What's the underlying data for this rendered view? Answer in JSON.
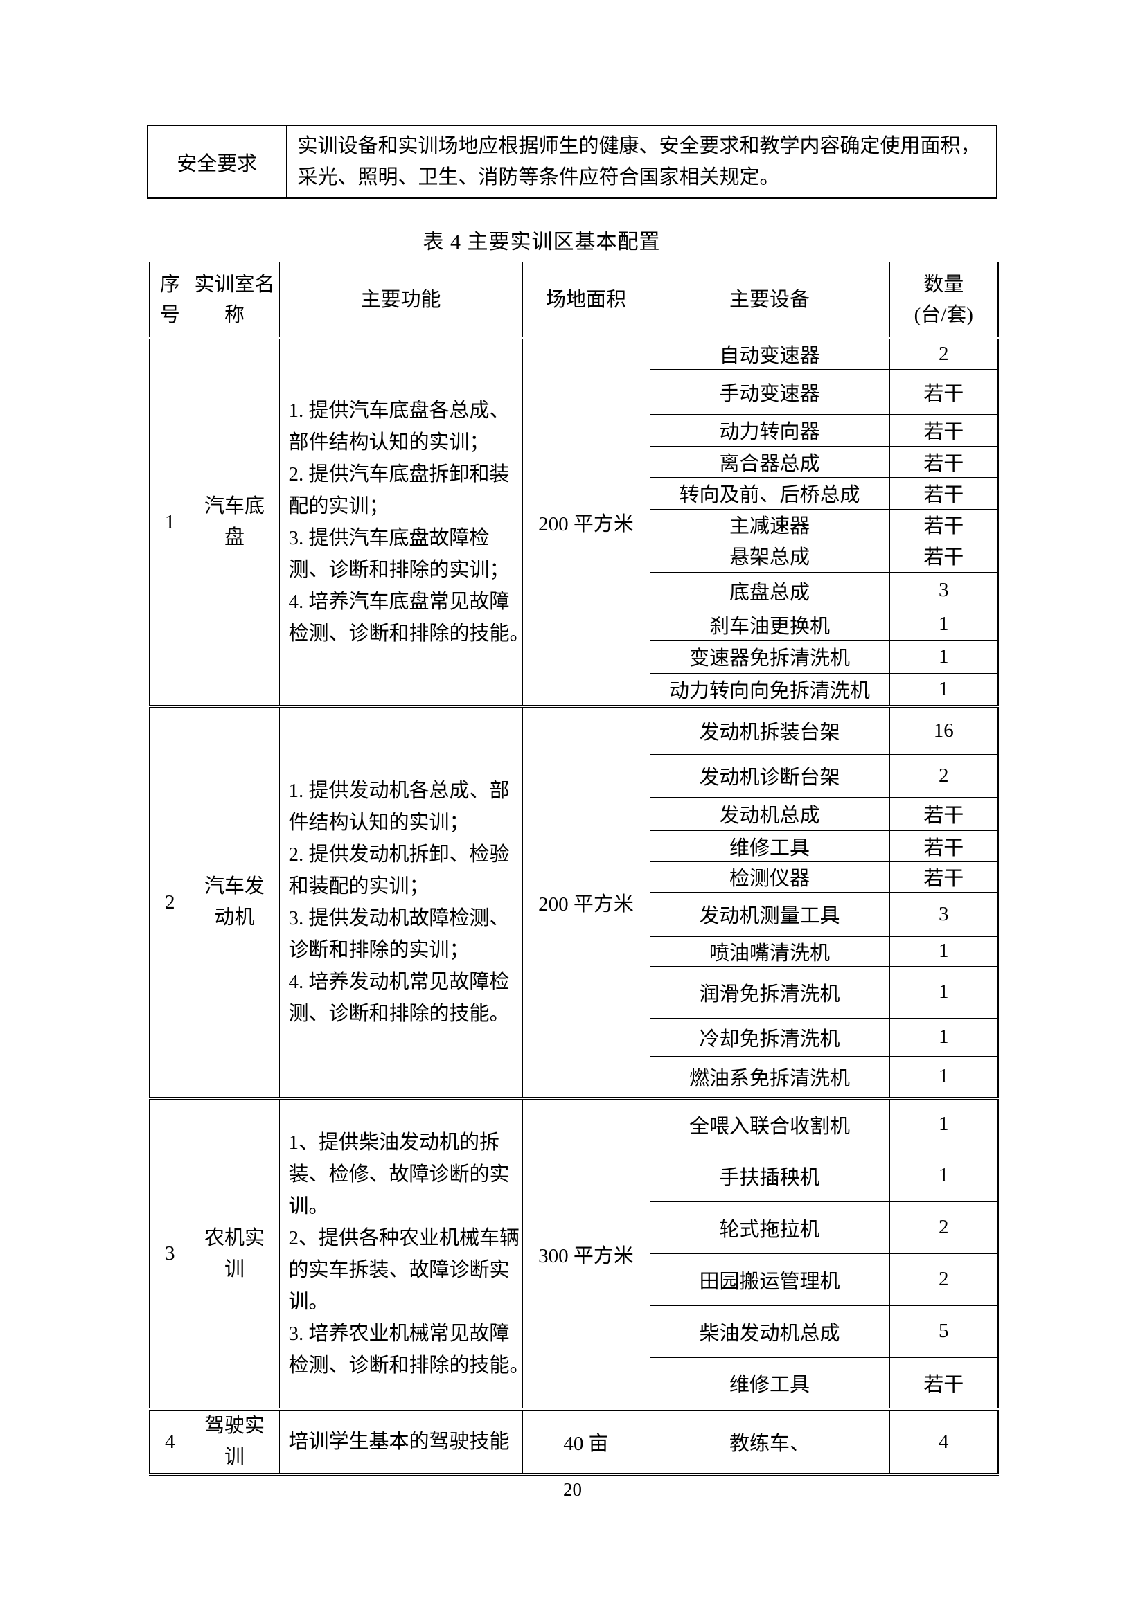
{
  "page": {
    "number": "20"
  },
  "safety_table": {
    "label": "安全要求",
    "lines": [
      "实训设备和实训场地应根据师生的健康、安全要求和教学内容确定使用面积，",
      "采光、照明、卫生、消防等条件应符合国家相关规定。"
    ]
  },
  "main_table": {
    "title": "表 4 主要实训区基本配置",
    "headers": {
      "no": "序号",
      "room": "实训室名称",
      "function": "主要功能",
      "area": "场地面积",
      "equipment": "主要设备",
      "quantity": "数量",
      "quantity_unit": "(台/套)"
    },
    "sections": [
      {
        "no": "1",
        "room": "汽车底盘",
        "function_lines": [
          "1. 提供汽车底盘各总成、",
          "部件结构认知的实训；",
          "2. 提供汽车底盘拆卸和装",
          "配的实训；",
          "3. 提供汽车底盘故障检",
          "测、诊断和排除的实训；",
          "4. 培养汽车底盘常见故障",
          "检测、诊断和排除的技能。"
        ],
        "area": "200 平方米",
        "equipment": [
          {
            "name": "自动变速器",
            "qty": "2"
          },
          {
            "name": "手动变速器",
            "qty": "若干"
          },
          {
            "name": "动力转向器",
            "qty": "若干"
          },
          {
            "name": "离合器总成",
            "qty": "若干"
          },
          {
            "name": "转向及前、后桥总成",
            "qty": "若干"
          },
          {
            "name": "主减速器",
            "qty": "若干"
          },
          {
            "name": "悬架总成",
            "qty": "若干"
          },
          {
            "name": "底盘总成",
            "qty": "3"
          },
          {
            "name": "刹车油更换机",
            "qty": "1"
          },
          {
            "name": "变速器免拆清洗机",
            "qty": "1"
          },
          {
            "name": "动力转向向免拆清洗机",
            "qty": "1"
          }
        ]
      },
      {
        "no": "2",
        "room": "汽车发动机",
        "function_lines": [
          "1. 提供发动机各总成、部",
          "件结构认知的实训；",
          "2. 提供发动机拆卸、检验",
          "和装配的实训；",
          "3. 提供发动机故障检测、",
          "诊断和排除的实训；",
          "4. 培养发动机常见故障检",
          "测、诊断和排除的技能。"
        ],
        "area": "200 平方米",
        "equipment": [
          {
            "name": "发动机拆装台架",
            "qty": "16"
          },
          {
            "name": "发动机诊断台架",
            "qty": "2"
          },
          {
            "name": "发动机总成",
            "qty": "若干"
          },
          {
            "name": "维修工具",
            "qty": "若干"
          },
          {
            "name": "检测仪器",
            "qty": "若干"
          },
          {
            "name": "发动机测量工具",
            "qty": "3"
          },
          {
            "name": "喷油嘴清洗机",
            "qty": "1"
          },
          {
            "name": "润滑免拆清洗机",
            "qty": "1"
          },
          {
            "name": "冷却免拆清洗机",
            "qty": "1"
          },
          {
            "name": "燃油系免拆清洗机",
            "qty": "1"
          }
        ]
      },
      {
        "no": "3",
        "room": "农机实训",
        "function_lines": [
          "1、提供柴油发动机的拆",
          "装、检修、故障诊断的实",
          "训。",
          "2、提供各种农业机械车辆",
          "的实车拆装、故障诊断实",
          "训。",
          "3. 培养农业机械常见故障",
          "检测、诊断和排除的技能。"
        ],
        "area": "300 平方米",
        "equipment": [
          {
            "name": "全喂入联合收割机",
            "qty": "1"
          },
          {
            "name": "手扶插秧机",
            "qty": "1"
          },
          {
            "name": "轮式拖拉机",
            "qty": "2"
          },
          {
            "name": "田园搬运管理机",
            "qty": "2"
          },
          {
            "name": "柴油发动机总成",
            "qty": "5"
          },
          {
            "name": "维修工具",
            "qty": "若干"
          }
        ]
      },
      {
        "no": "4",
        "room": "驾驶实训",
        "function_lines": [
          "培训学生基本的驾驶技能"
        ],
        "area": "40 亩",
        "equipment": [
          {
            "name": "教练车、",
            "qty": "4"
          }
        ]
      }
    ]
  }
}
